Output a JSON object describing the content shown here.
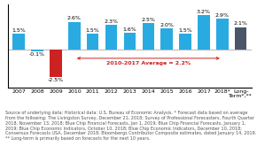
{
  "chart_data": {
    "type": "bar",
    "categories": [
      "2007",
      "2008",
      "2009",
      "2010",
      "2011",
      "2012",
      "2013",
      "2014",
      "2015",
      "2016",
      "2017",
      "2018*",
      "Long-\nTerm*,**"
    ],
    "values": [
      1.5,
      -0.1,
      -2.5,
      2.6,
      1.5,
      2.3,
      1.6,
      2.5,
      2.0,
      1.5,
      3.2,
      2.9,
      2.1
    ],
    "value_labels": [
      "1.5%",
      "-0.1%",
      "-2.5%",
      "2.6%",
      "1.5%",
      "2.3%",
      "1.6%",
      "2.5%",
      "2.0%",
      "1.5%",
      "3.2%",
      "2.9%",
      "2.1%"
    ],
    "data_labels": true,
    "colors": [
      "#29abe2",
      "#29abe2",
      "#cc2222",
      "#29abe2",
      "#29abe2",
      "#29abe2",
      "#29abe2",
      "#29abe2",
      "#29abe2",
      "#29abe2",
      "#29abe2",
      "#29abe2",
      "#4a5568"
    ],
    "ylim": [
      -3.5,
      4.2
    ],
    "tick_labels": "x",
    "annotations": [
      {
        "text": "2010-2017 Average = 2.2%",
        "from": "2010",
        "to": "2018*",
        "color": "#cc2222"
      }
    ],
    "footnote": "Source of underlying data: Historical data: U.S. Bureau of Economic Analysis. * Forecast data based on average from the following: The Livingston Survey, December 21, 2018; Survey of Professional Forecasters, Fourth Quarter 2018, November 13, 2018; Blue Chip Financial Forecasts, Jan 1, 2019; Blue Chip Financial Forecasts, January 1, 2019; Blue Chip Economic Indicators, October 10, 2018; Blue Chip Economic Indicators, December 10, 2018; Consensus Forecasts USA, December 2018; Bloombergs Contributor Composite estimates, dated January 14, 2019. ** Long-term is primarily based on forecasts for the next 10 years."
  }
}
